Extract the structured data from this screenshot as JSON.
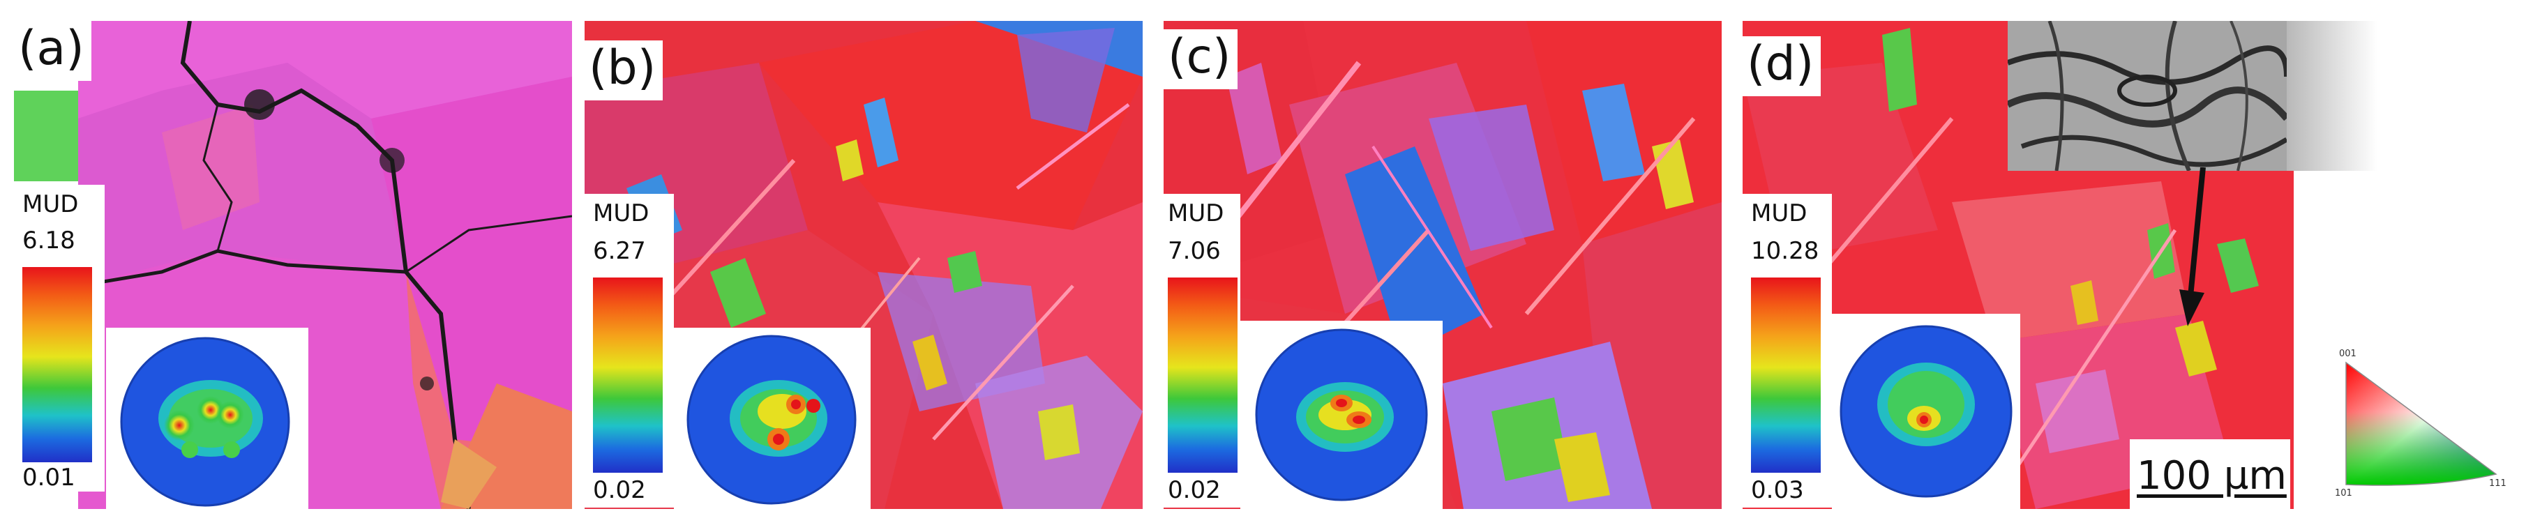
{
  "panels": [
    {
      "label": "(a)",
      "mud_title": "MUD",
      "mud_max": "6.18",
      "mud_min": "0.01"
    },
    {
      "label": "(b)",
      "mud_title": "MUD",
      "mud_max": "6.27",
      "mud_min": "0.02"
    },
    {
      "label": "(c)",
      "mud_title": "MUD",
      "mud_max": "7.06",
      "mud_min": "0.02"
    },
    {
      "label": "(d)",
      "mud_title": "MUD",
      "mud_max": "10.28",
      "mud_min": "0.03"
    }
  ],
  "scale_bar": {
    "label": "100 µm"
  },
  "ipf_key": {
    "corner_top": "001",
    "corner_left": "101",
    "corner_right": "111"
  },
  "colors": {
    "pink_grain": "#e25bd6",
    "red_grain": "#ef2b3a",
    "boundary": "#1a1a1a"
  }
}
